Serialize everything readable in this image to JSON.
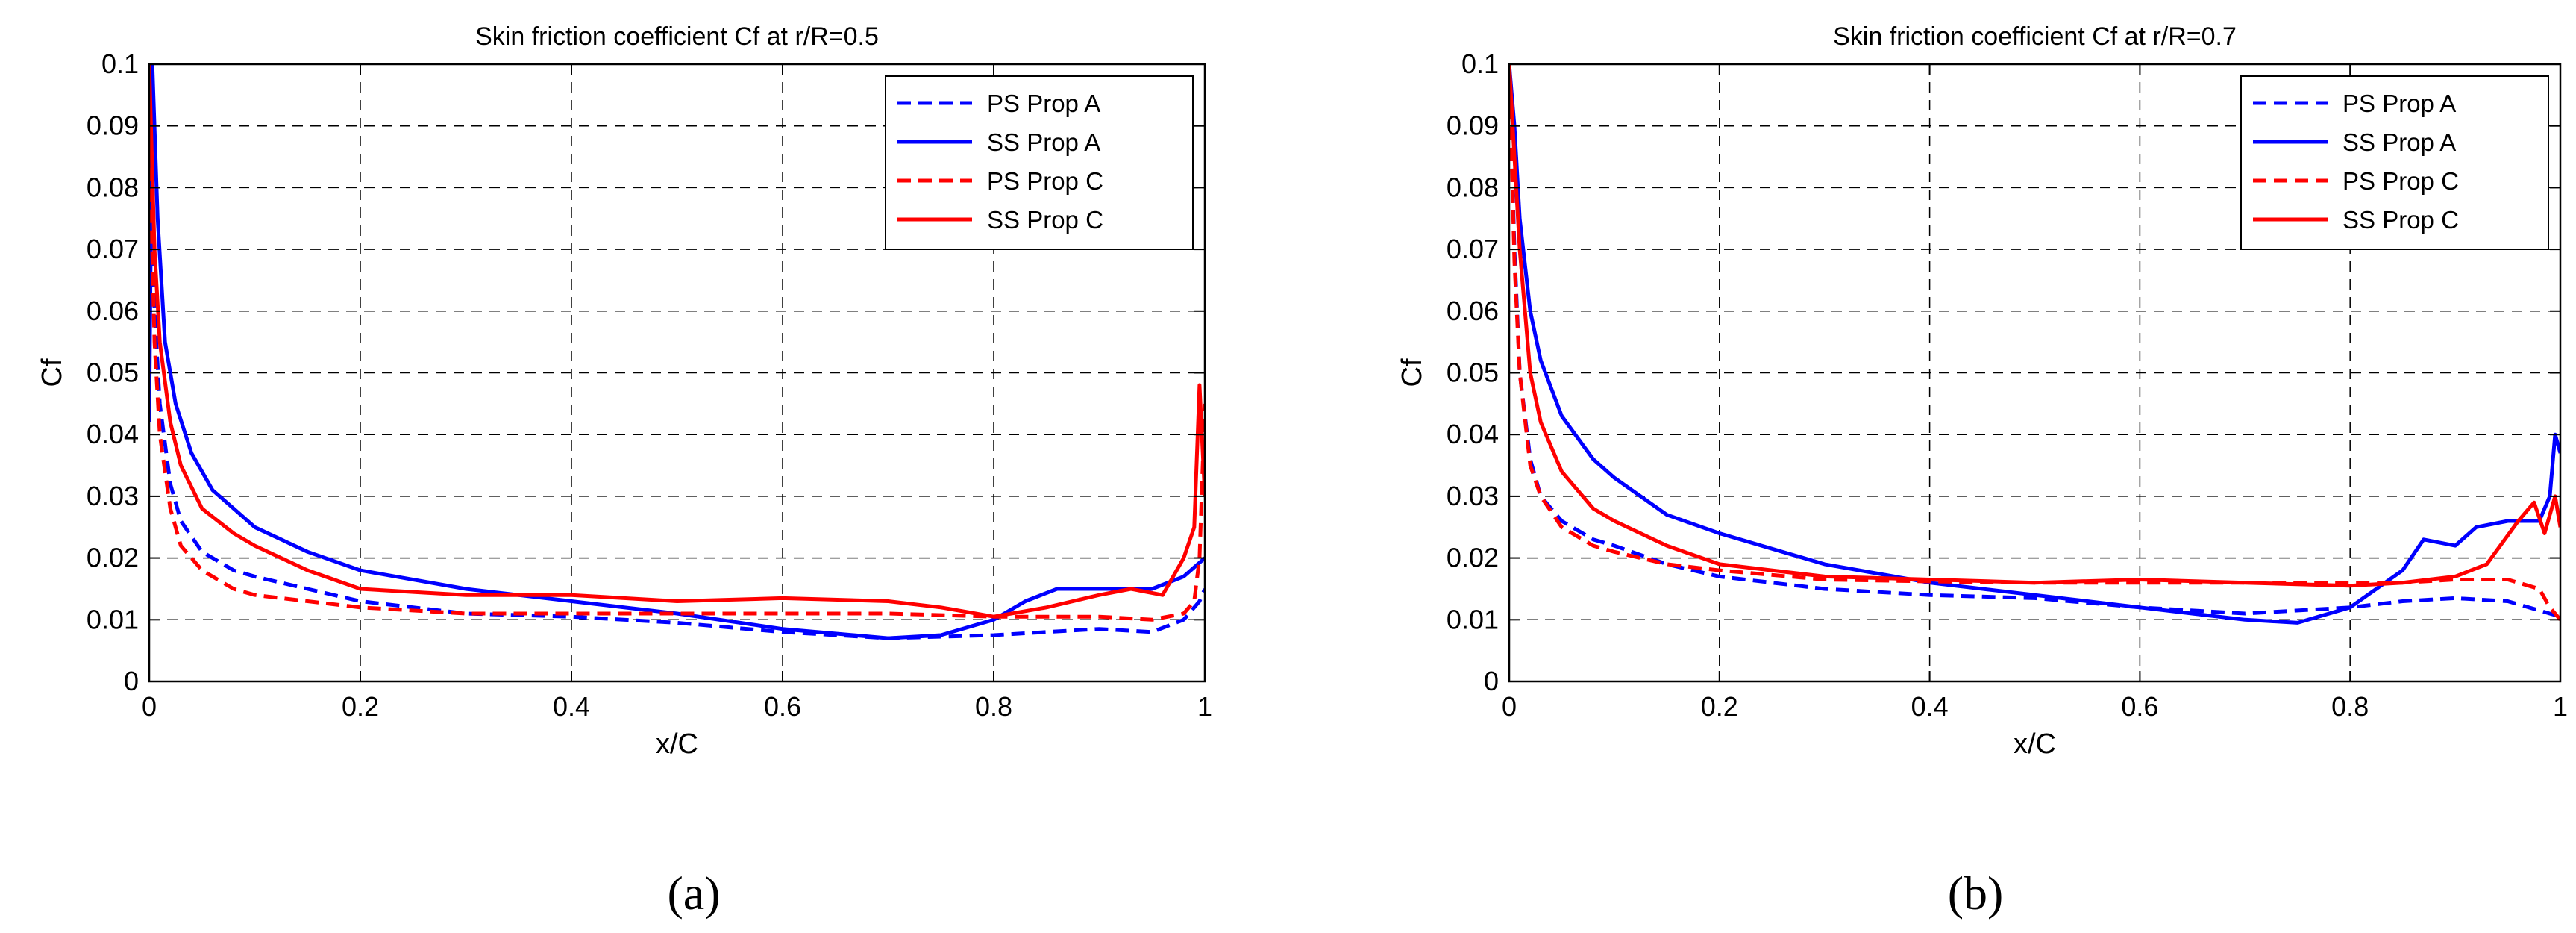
{
  "figure": {
    "captions": [
      "(a)",
      "(b)"
    ]
  },
  "chart_data": [
    {
      "type": "line",
      "title": "Skin friction coefficient Cf at r/R=0.5",
      "xlabel": "x/C",
      "ylabel": "Cf",
      "xlim": [
        0,
        1
      ],
      "ylim": [
        0,
        0.1
      ],
      "xticks": [
        0,
        0.2,
        0.4,
        0.6,
        0.8,
        1
      ],
      "xtick_labels": [
        "0",
        "0.2",
        "0.4",
        "0.6",
        "0.8",
        "1"
      ],
      "yticks": [
        0,
        0.01,
        0.02,
        0.03,
        0.04,
        0.05,
        0.06,
        0.07,
        0.08,
        0.09,
        0.1
      ],
      "ytick_labels": [
        "0",
        "0.01",
        "0.02",
        "0.03",
        "0.04",
        "0.05",
        "0.06",
        "0.07",
        "0.08",
        "0.09",
        "0.1"
      ],
      "grid": true,
      "legend_position": "top-right",
      "series": [
        {
          "name": "PS Prop A",
          "color": "#0000ff",
          "dash": "dashed",
          "x": [
            0.0,
            0.005,
            0.01,
            0.02,
            0.03,
            0.05,
            0.08,
            0.1,
            0.15,
            0.2,
            0.3,
            0.4,
            0.5,
            0.6,
            0.7,
            0.8,
            0.85,
            0.9,
            0.95,
            0.98,
            0.995,
            1.0
          ],
          "y": [
            0.1,
            0.06,
            0.045,
            0.032,
            0.026,
            0.021,
            0.018,
            0.017,
            0.015,
            0.013,
            0.011,
            0.0105,
            0.0095,
            0.008,
            0.007,
            0.0075,
            0.008,
            0.0085,
            0.008,
            0.01,
            0.013,
            0.015
          ]
        },
        {
          "name": "SS Prop A",
          "color": "#0000ff",
          "dash": "solid",
          "x": [
            0.0,
            0.003,
            0.008,
            0.015,
            0.025,
            0.04,
            0.06,
            0.08,
            0.1,
            0.15,
            0.2,
            0.3,
            0.4,
            0.5,
            0.6,
            0.7,
            0.75,
            0.8,
            0.83,
            0.86,
            0.9,
            0.95,
            0.98,
            1.0
          ],
          "y": [
            0.042,
            0.1,
            0.075,
            0.055,
            0.045,
            0.037,
            0.031,
            0.028,
            0.025,
            0.021,
            0.018,
            0.015,
            0.013,
            0.011,
            0.0085,
            0.007,
            0.0075,
            0.01,
            0.013,
            0.015,
            0.015,
            0.015,
            0.017,
            0.02
          ]
        },
        {
          "name": "PS Prop C",
          "color": "#ff0000",
          "dash": "dashed",
          "x": [
            0.0,
            0.005,
            0.01,
            0.02,
            0.03,
            0.05,
            0.08,
            0.1,
            0.15,
            0.2,
            0.3,
            0.4,
            0.5,
            0.6,
            0.7,
            0.8,
            0.85,
            0.9,
            0.95,
            0.98,
            0.99,
            0.995,
            1.0
          ],
          "y": [
            0.09,
            0.055,
            0.04,
            0.028,
            0.022,
            0.018,
            0.015,
            0.014,
            0.013,
            0.012,
            0.011,
            0.011,
            0.011,
            0.011,
            0.011,
            0.0105,
            0.0105,
            0.0105,
            0.01,
            0.011,
            0.013,
            0.02,
            0.045
          ]
        },
        {
          "name": "SS Prop C",
          "color": "#ff0000",
          "dash": "solid",
          "x": [
            0.0,
            0.005,
            0.01,
            0.02,
            0.03,
            0.05,
            0.08,
            0.1,
            0.15,
            0.2,
            0.3,
            0.4,
            0.5,
            0.6,
            0.7,
            0.75,
            0.8,
            0.85,
            0.9,
            0.93,
            0.96,
            0.98,
            0.99,
            0.995,
            1.0
          ],
          "y": [
            0.1,
            0.07,
            0.055,
            0.042,
            0.035,
            0.028,
            0.024,
            0.022,
            0.018,
            0.015,
            0.014,
            0.014,
            0.013,
            0.0135,
            0.013,
            0.012,
            0.0105,
            0.012,
            0.014,
            0.015,
            0.014,
            0.02,
            0.025,
            0.048,
            0.03
          ]
        }
      ]
    },
    {
      "type": "line",
      "title": "Skin friction coefficient Cf at r/R=0.7",
      "xlabel": "x/C",
      "ylabel": "Cf",
      "xlim": [
        0,
        1
      ],
      "ylim": [
        0,
        0.1
      ],
      "xticks": [
        0,
        0.2,
        0.4,
        0.6,
        0.8,
        1
      ],
      "xtick_labels": [
        "0",
        "0.2",
        "0.4",
        "0.6",
        "0.8",
        "1"
      ],
      "yticks": [
        0,
        0.01,
        0.02,
        0.03,
        0.04,
        0.05,
        0.06,
        0.07,
        0.08,
        0.09,
        0.1
      ],
      "ytick_labels": [
        "0",
        "0.01",
        "0.02",
        "0.03",
        "0.04",
        "0.05",
        "0.06",
        "0.07",
        "0.08",
        "0.09",
        "0.1"
      ],
      "grid": true,
      "legend_position": "top-right",
      "series": [
        {
          "name": "PS Prop A",
          "color": "#0000ff",
          "dash": "dashed",
          "x": [
            0.0,
            0.005,
            0.01,
            0.02,
            0.03,
            0.05,
            0.08,
            0.1,
            0.15,
            0.2,
            0.3,
            0.4,
            0.5,
            0.6,
            0.7,
            0.8,
            0.85,
            0.9,
            0.95,
            0.98,
            1.0
          ],
          "y": [
            0.1,
            0.07,
            0.05,
            0.036,
            0.03,
            0.026,
            0.023,
            0.022,
            0.019,
            0.017,
            0.015,
            0.014,
            0.0135,
            0.012,
            0.011,
            0.012,
            0.013,
            0.0135,
            0.013,
            0.0115,
            0.0105
          ]
        },
        {
          "name": "SS Prop A",
          "color": "#0000ff",
          "dash": "solid",
          "x": [
            0.0,
            0.005,
            0.01,
            0.02,
            0.03,
            0.05,
            0.08,
            0.1,
            0.15,
            0.2,
            0.3,
            0.4,
            0.5,
            0.6,
            0.7,
            0.75,
            0.8,
            0.85,
            0.87,
            0.9,
            0.92,
            0.95,
            0.98,
            0.99,
            0.995,
            1.0
          ],
          "y": [
            0.1,
            0.09,
            0.075,
            0.06,
            0.052,
            0.043,
            0.036,
            0.033,
            0.027,
            0.024,
            0.019,
            0.016,
            0.014,
            0.012,
            0.01,
            0.0095,
            0.012,
            0.018,
            0.023,
            0.022,
            0.025,
            0.026,
            0.026,
            0.03,
            0.04,
            0.037
          ]
        },
        {
          "name": "PS Prop C",
          "color": "#ff0000",
          "dash": "dashed",
          "x": [
            0.0,
            0.005,
            0.01,
            0.02,
            0.03,
            0.05,
            0.08,
            0.1,
            0.15,
            0.2,
            0.3,
            0.4,
            0.5,
            0.6,
            0.7,
            0.8,
            0.85,
            0.9,
            0.95,
            0.98,
            0.99,
            1.0
          ],
          "y": [
            0.1,
            0.068,
            0.05,
            0.035,
            0.03,
            0.025,
            0.022,
            0.021,
            0.019,
            0.018,
            0.0165,
            0.0162,
            0.016,
            0.016,
            0.016,
            0.016,
            0.016,
            0.0165,
            0.0165,
            0.015,
            0.012,
            0.01
          ]
        },
        {
          "name": "SS Prop C",
          "color": "#ff0000",
          "dash": "solid",
          "x": [
            0.0,
            0.005,
            0.01,
            0.02,
            0.03,
            0.05,
            0.08,
            0.1,
            0.15,
            0.2,
            0.3,
            0.4,
            0.5,
            0.6,
            0.7,
            0.8,
            0.85,
            0.9,
            0.93,
            0.96,
            0.975,
            0.985,
            0.995,
            1.0
          ],
          "y": [
            0.1,
            0.085,
            0.07,
            0.05,
            0.042,
            0.034,
            0.028,
            0.026,
            0.022,
            0.019,
            0.017,
            0.0165,
            0.016,
            0.0165,
            0.016,
            0.0155,
            0.016,
            0.017,
            0.019,
            0.026,
            0.029,
            0.024,
            0.03,
            0.025
          ]
        }
      ]
    }
  ]
}
